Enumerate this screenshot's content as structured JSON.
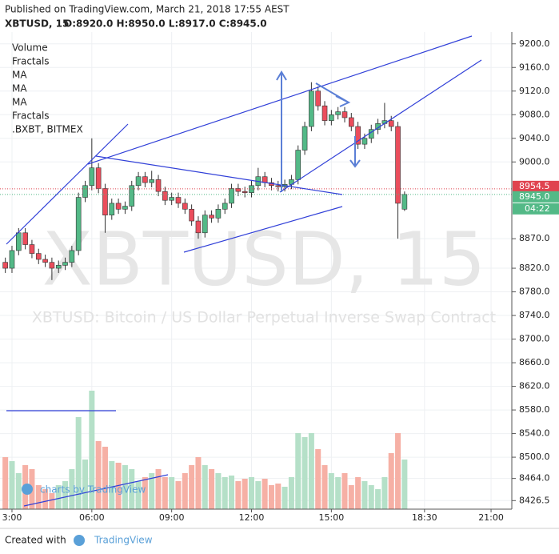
{
  "header": {
    "published": "Published on TradingView.com, March 21, 2018 17:55 AEST",
    "symbol": "XBTUSD, 15",
    "ohlc": "O:8920.0 H:8950.0 L:8917.0 C:8945.0"
  },
  "legend": [
    "Volume",
    "Fractals",
    "MA",
    "MA",
    "MA",
    "Fractals",
    ".BXBT, BITMEX"
  ],
  "watermark": {
    "title": "XBTUSD, 15",
    "subtitle": "XBTUSD: Bitcoin / US Dollar Perpetual Inverse Swap Contract"
  },
  "branding": "charts by TradingView",
  "footer": {
    "created": "Created with",
    "brand": "TradingView"
  },
  "chart_data": {
    "type": "candlestick",
    "x": [
      2.75,
      3,
      3.25,
      3.5,
      3.75,
      4,
      4.25,
      4.5,
      4.75,
      5,
      5.25,
      5.5,
      5.75,
      6,
      6.25,
      6.5,
      6.75,
      7,
      7.25,
      7.5,
      7.75,
      8,
      8.25,
      8.5,
      8.75,
      9,
      9.25,
      9.5,
      9.75,
      10,
      10.25,
      10.5,
      10.75,
      11,
      11.25,
      11.5,
      11.75,
      12,
      12.25,
      12.5,
      12.75,
      13,
      13.25,
      13.5,
      13.75,
      14,
      14.25,
      14.5,
      14.75,
      15,
      15.25,
      15.5,
      15.75,
      16,
      16.25,
      16.5,
      16.75,
      17,
      17.25,
      17.5,
      17.75
    ],
    "open": [
      8830,
      8820,
      8850,
      8880,
      8860,
      8845,
      8835,
      8830,
      8820,
      8825,
      8830,
      8850,
      8940,
      8960,
      8990,
      8955,
      8910,
      8930,
      8920,
      8925,
      8960,
      8975,
      8965,
      8970,
      8950,
      8935,
      8940,
      8930,
      8920,
      8900,
      8880,
      8910,
      8905,
      8920,
      8930,
      8955,
      8950,
      8948,
      8960,
      8975,
      8965,
      8960,
      8958,
      8962,
      8970,
      9020,
      9060,
      9120,
      9095,
      9070,
      9080,
      9085,
      9075,
      9060,
      9030,
      9040,
      9055,
      9065,
      9070,
      9060,
      8920
    ],
    "high": [
      8838,
      8858,
      8888,
      8888,
      8868,
      8853,
      8843,
      8838,
      8833,
      8838,
      8858,
      8948,
      8968,
      9040,
      8998,
      8963,
      8938,
      8938,
      8933,
      8968,
      8983,
      8983,
      8985,
      8978,
      8958,
      8948,
      8948,
      8938,
      8928,
      8908,
      8918,
      8918,
      8928,
      8938,
      8963,
      8963,
      8958,
      8968,
      8990,
      8983,
      8973,
      8968,
      8970,
      8978,
      9028,
      9068,
      9135,
      9128,
      9103,
      9088,
      9093,
      9093,
      9083,
      9068,
      9048,
      9063,
      9073,
      9100,
      9078,
      9068,
      8950
    ],
    "low": [
      8812,
      8812,
      8842,
      8852,
      8837,
      8827,
      8822,
      8800,
      8812,
      8817,
      8822,
      8842,
      8932,
      8952,
      8947,
      8880,
      8902,
      8912,
      8912,
      8917,
      8952,
      8957,
      8957,
      8942,
      8927,
      8927,
      8922,
      8912,
      8892,
      8870,
      8872,
      8897,
      8897,
      8912,
      8922,
      8942,
      8940,
      8940,
      8952,
      8957,
      8952,
      8950,
      8950,
      8954,
      8962,
      9012,
      9052,
      9087,
      9062,
      9062,
      9072,
      9067,
      9052,
      9022,
      9022,
      9032,
      9047,
      9057,
      9052,
      8870,
      8917
    ],
    "close": [
      8820,
      8850,
      8880,
      8860,
      8845,
      8835,
      8830,
      8820,
      8825,
      8830,
      8850,
      8940,
      8960,
      8990,
      8955,
      8910,
      8930,
      8920,
      8925,
      8960,
      8975,
      8965,
      8970,
      8950,
      8935,
      8940,
      8930,
      8920,
      8900,
      8880,
      8910,
      8905,
      8920,
      8930,
      8955,
      8950,
      8948,
      8960,
      8975,
      8965,
      8960,
      8958,
      8962,
      8970,
      9020,
      9060,
      9120,
      9095,
      9070,
      9080,
      9085,
      9075,
      9060,
      9030,
      9040,
      9055,
      9065,
      9070,
      9060,
      8930,
      8945
    ],
    "volume": [
      65,
      60,
      45,
      55,
      50,
      30,
      25,
      20,
      30,
      35,
      50,
      115,
      62,
      148,
      85,
      78,
      60,
      58,
      55,
      50,
      35,
      40,
      45,
      50,
      40,
      40,
      35,
      45,
      55,
      65,
      55,
      50,
      45,
      40,
      42,
      35,
      38,
      40,
      35,
      38,
      30,
      32,
      28,
      40,
      95,
      90,
      95,
      75,
      55,
      45,
      40,
      45,
      30,
      40,
      35,
      30,
      25,
      40,
      70,
      95,
      62
    ],
    "volume_lim": [
      0,
      160
    ],
    "up_color": "#53b987",
    "down_color": "#eb4d5c",
    "up_volume_color": "#b5e0c8",
    "down_volume_color": "#f6b0a5",
    "xlim": [
      2.55,
      21.78
    ],
    "xticks": [
      {
        "value": 3,
        "label": "3:00"
      },
      {
        "value": 6,
        "label": "06:00"
      },
      {
        "value": 9,
        "label": "09:00"
      },
      {
        "value": 12,
        "label": "12:00"
      },
      {
        "value": 15,
        "label": "15:00"
      },
      {
        "value": 18.5,
        "label": "18:30"
      },
      {
        "value": 21,
        "label": "21:00"
      }
    ],
    "ylim": [
      8412,
      9220
    ],
    "yticks": [
      {
        "value": 9200,
        "label": "9200.0"
      },
      {
        "value": 9160,
        "label": "9160.0"
      },
      {
        "value": 9120,
        "label": "9120.0"
      },
      {
        "value": 9080,
        "label": "9080.0"
      },
      {
        "value": 9040,
        "label": "9040.0"
      },
      {
        "value": 9000,
        "label": "9000.0"
      },
      {
        "value": 8870,
        "label": "8870.0"
      },
      {
        "value": 8820,
        "label": "8820.0"
      },
      {
        "value": 8780,
        "label": "8780.0"
      },
      {
        "value": 8740,
        "label": "8740.0"
      },
      {
        "value": 8700,
        "label": "8700.0"
      },
      {
        "value": 8660,
        "label": "8660.0"
      },
      {
        "value": 8620,
        "label": "8620.0"
      },
      {
        "value": 8580,
        "label": "8580.0"
      },
      {
        "value": 8540,
        "label": "8540.0"
      },
      {
        "value": 8500,
        "label": "8500.0"
      },
      {
        "value": 8464,
        "label": "8464.0"
      },
      {
        "value": 8426.5,
        "label": "8426.5"
      }
    ],
    "grid": true,
    "price_labels": [
      {
        "value": 8954.5,
        "label": "8954.5",
        "color": "#e0434f"
      },
      {
        "value": 8945,
        "label": "8945.0",
        "color": "#53b987"
      }
    ],
    "countdown": "04:22"
  }
}
